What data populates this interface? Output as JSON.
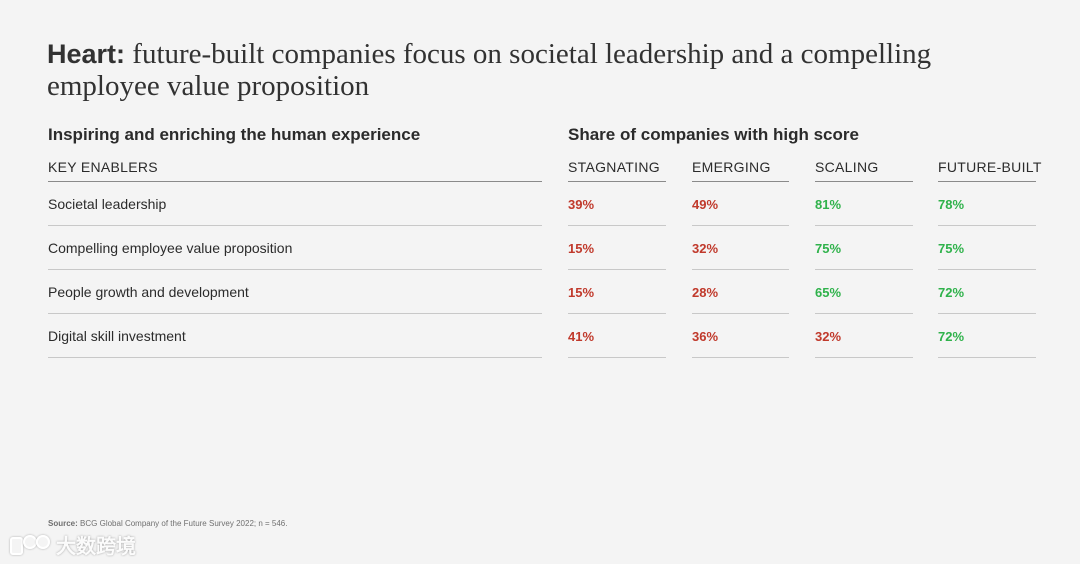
{
  "title": {
    "lead": "Heart:",
    "rest": "future-built companies focus on societal leadership and a compelling employee value proposition"
  },
  "left_heading": "Inspiring and enriching the human experience",
  "right_heading": "Share of companies with high score",
  "columns": {
    "enablers": "KEY ENABLERS",
    "stagnating": "STAGNATING",
    "emerging": "EMERGING",
    "scaling": "SCALING",
    "future_built": "FUTURE-BUILT"
  },
  "rows": [
    {
      "label": "Societal leadership",
      "stagnating": "39%",
      "emerging": "49%",
      "scaling": "81%",
      "future_built": "78%"
    },
    {
      "label": "Compelling employee value proposition",
      "stagnating": "15%",
      "emerging": "32%",
      "scaling": "75%",
      "future_built": "75%"
    },
    {
      "label": "People growth and development",
      "stagnating": "15%",
      "emerging": "28%",
      "scaling": "65%",
      "future_built": "72%"
    },
    {
      "label": "Digital skill investment",
      "stagnating": "41%",
      "emerging": "36%",
      "scaling": "32%",
      "future_built": "72%"
    }
  ],
  "colors": {
    "low": "#c0392b",
    "high": "#2fb24b"
  },
  "source": {
    "label": "Source:",
    "text": "BCG Global Company of the Future Survey 2022; n = 546."
  },
  "watermark": "大数跨境"
}
